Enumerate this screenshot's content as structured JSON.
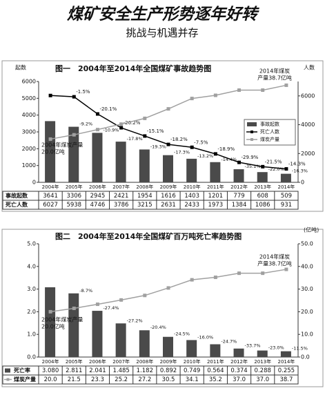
{
  "header": {
    "title": "煤矿安全生产形势逐年好转",
    "subtitle": "挑战与机遇并存"
  },
  "chart_data": [
    {
      "type": "bar",
      "title": "图一　2004年至2014年全国煤矿事故趋势图",
      "ylabel": "起数",
      "y2label": "人数",
      "categories": [
        "2004年",
        "2005年",
        "2006年",
        "2007年",
        "2008年",
        "2009年",
        "2010年",
        "2011年",
        "2012年",
        "2013年",
        "2014年"
      ],
      "ylim": [
        0,
        6000
      ],
      "yticks": [
        0,
        1000,
        2000,
        3000,
        4000,
        5000,
        6000
      ],
      "y2lim": [
        0,
        7000
      ],
      "y2ticks": [
        0,
        2000,
        4000,
        6000
      ],
      "y3lim": [
        5,
        40
      ],
      "legend": "right",
      "series": [
        {
          "name": "事故起数",
          "type": "bar",
          "color": "#4a4a4a",
          "values": [
            3641,
            3306,
            2945,
            2421,
            1954,
            1616,
            1403,
            1201,
            779,
            608,
            509
          ],
          "change_labels": [
            null,
            "-9.2%",
            "-10.9%",
            "-17.8%",
            "-19.3%",
            "-17.3%",
            "-13.2%",
            "-14.4%",
            "-35.1%",
            "-22.0%",
            "-16.3%"
          ]
        },
        {
          "name": "死亡人数",
          "type": "line",
          "axis": "y2",
          "color": "#000000",
          "values": [
            6027,
            5938,
            4746,
            3786,
            3215,
            2631,
            2433,
            1973,
            1384,
            1086,
            931
          ],
          "change_labels": [
            null,
            "-1.5%",
            "-20.1%",
            "-20.2%",
            "-15.1%",
            "-18.2%",
            "-7.5%",
            "-18.9%",
            "-29.9%",
            "-21.5%",
            "-14.3%"
          ]
        },
        {
          "name": "煤炭产量",
          "type": "line",
          "axis": "y3",
          "color": "#a0a0a0",
          "values": [
            20.0,
            21.5,
            23.3,
            25.2,
            27.2,
            30.5,
            34.1,
            35.2,
            37.0,
            37.0,
            38.7
          ]
        }
      ],
      "annotations": [
        [
          "2014年煤炭",
          "产量38.7亿吨"
        ],
        [
          "2004年煤炭产量",
          "20.0亿吨"
        ]
      ]
    },
    {
      "type": "bar",
      "title": "图二　2004年至2014年全国煤矿百万吨死亡率趋势图",
      "y2label": "(亿吨)",
      "categories": [
        "2004年",
        "2005年",
        "2006年",
        "2007年",
        "2008年",
        "2009年",
        "2010年",
        "2011年",
        "2012年",
        "2013年",
        "2014年"
      ],
      "ylim": [
        0,
        5
      ],
      "yticks": [
        {
          "value": 0,
          "label": "0.0"
        },
        {
          "value": 1,
          "label": "1.0"
        },
        {
          "value": 2,
          "label": "2.0"
        },
        {
          "value": 3,
          "label": "3.0"
        },
        {
          "value": 4,
          "label": "4.0"
        },
        {
          "value": 5,
          "label": "5.0"
        }
      ],
      "y2lim": [
        0,
        50
      ],
      "y2ticks": [
        {
          "value": 0,
          "label": "0.0"
        },
        {
          "value": 10,
          "label": "10.0"
        },
        {
          "value": 20,
          "label": "20.0"
        },
        {
          "value": 30,
          "label": "30.0"
        },
        {
          "value": 40,
          "label": "40.0"
        },
        {
          "value": 50,
          "label": "50.0"
        }
      ],
      "series": [
        {
          "name": "死亡率",
          "type": "bar",
          "color": "#4a4a4a",
          "values": [
            3.08,
            2.811,
            2.041,
            1.485,
            1.182,
            0.892,
            0.749,
            0.564,
            0.374,
            0.288,
            0.255
          ],
          "value_labels": [
            "3.080",
            "2.811",
            "2.041",
            "1.485",
            "1.182",
            "0.892",
            "0.749",
            "0.564",
            "0.374",
            "0.288",
            "0.255"
          ],
          "change_labels": [
            null,
            "-8.7%",
            "-27.4%",
            "-27.2%",
            "-20.4%",
            "-24.5%",
            "-16.0%",
            "-24.7%",
            "-33.7%",
            "-23.0%",
            "-11.5%"
          ]
        },
        {
          "name": "煤炭产量",
          "type": "line",
          "axis": "y2",
          "color": "#a0a0a0",
          "values": [
            20.0,
            21.5,
            23.3,
            25.2,
            27.2,
            30.5,
            34.1,
            35.2,
            37.0,
            37.0,
            38.7
          ],
          "value_labels": [
            "20.0",
            "21.5",
            "23.3",
            "25.2",
            "27.2",
            "30.5",
            "34.1",
            "35.2",
            "37.0",
            "37.0",
            "38.7"
          ]
        }
      ],
      "annotations": [
        [
          "2014年煤炭",
          "产量38.7亿吨"
        ],
        [
          "2004年煤炭产量",
          "20.0亿吨"
        ]
      ]
    }
  ]
}
